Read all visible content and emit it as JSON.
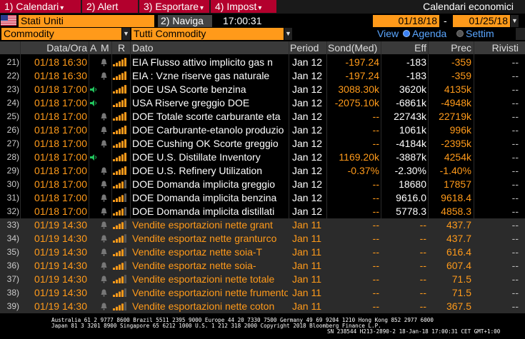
{
  "menu": {
    "items": [
      {
        "num": "1)",
        "label": "Calendari",
        "caret": true
      },
      {
        "num": "2)",
        "label": "Alert",
        "caret": false
      },
      {
        "num": "3)",
        "label": "Esportare",
        "caret": true
      },
      {
        "num": "4)",
        "label": "Impost",
        "caret": true
      }
    ],
    "screen_title": "Calendari economici"
  },
  "toolbar": {
    "country": "Stati Uniti",
    "navigate_num": "2)",
    "navigate_label": "Naviga",
    "clock": "17:00:31",
    "date_from": "01/18/18",
    "date_sep": "-",
    "date_to": "01/25/18"
  },
  "filters": {
    "category": "Commodity",
    "subcategory": "Tutti Commodity",
    "view_label": "View",
    "view_agenda": "Agenda",
    "view_week": "Settim",
    "view_selected": "Agenda"
  },
  "table": {
    "headers": {
      "dt": "Data/Ora",
      "a": "A",
      "m": "M",
      "r": "R",
      "dato": "Dato",
      "period": "Period",
      "sond": "Sond(Med)",
      "eff": "Eff",
      "prec": "Prec",
      "riv": "Rivisti"
    },
    "rows": [
      {
        "idx": "21)",
        "dt": "01/18 16:30",
        "alert": "bell",
        "bars": 5,
        "dato": "EIA Flusso attivo implicito gas n",
        "period": "Jan 12",
        "sond": "-197.24",
        "eff": "-183",
        "prec": "-359",
        "riv": "--",
        "future": false
      },
      {
        "idx": "22)",
        "dt": "01/18 16:30",
        "alert": "bell",
        "bars": 5,
        "dato": "EIA : Vzne riserve gas naturale",
        "period": "Jan 12",
        "sond": "-197.24",
        "eff": "-183",
        "prec": "-359",
        "riv": "--",
        "future": false
      },
      {
        "idx": "23)",
        "dt": "01/18 17:00",
        "alert": "speaker",
        "bars": 5,
        "dato": "DOE USA Scorte benzina",
        "period": "Jan 12",
        "sond": "3088.30k",
        "eff": "3620k",
        "prec": "4135k",
        "riv": "--",
        "future": false
      },
      {
        "idx": "24)",
        "dt": "01/18 17:00",
        "alert": "speaker",
        "bars": 5,
        "dato": "USA Riserve greggio DOE",
        "period": "Jan 12",
        "sond": "-2075.10k",
        "eff": "-6861k",
        "prec": "-4948k",
        "riv": "--",
        "future": false
      },
      {
        "idx": "25)",
        "dt": "01/18 17:00",
        "alert": "bell",
        "bars": 5,
        "dato": "DOE Totale scorte carburante eta",
        "period": "Jan 12",
        "sond": "--",
        "eff": "22743k",
        "prec": "22719k",
        "riv": "--",
        "future": false
      },
      {
        "idx": "26)",
        "dt": "01/18 17:00",
        "alert": "bell",
        "bars": 5,
        "dato": "DOE Carburante-etanolo produzio",
        "period": "Jan 12",
        "sond": "--",
        "eff": "1061k",
        "prec": "996k",
        "riv": "--",
        "future": false
      },
      {
        "idx": "27)",
        "dt": "01/18 17:00",
        "alert": "bell",
        "bars": 5,
        "dato": "DOE Cushing OK Scorte greggio",
        "period": "Jan 12",
        "sond": "--",
        "eff": "-4184k",
        "prec": "-2395k",
        "riv": "--",
        "future": false
      },
      {
        "idx": "28)",
        "dt": "01/18 17:00",
        "alert": "speaker",
        "bars": 5,
        "dato": "DOE U.S. Distillate Inventory",
        "period": "Jan 12",
        "sond": "1169.20k",
        "eff": "-3887k",
        "prec": "4254k",
        "riv": "--",
        "future": false
      },
      {
        "idx": "29)",
        "dt": "01/18 17:00",
        "alert": "bell",
        "bars": 5,
        "dato": "DOE U.S. Refinery Utilization",
        "period": "Jan 12",
        "sond": "-0.37%",
        "eff": "-2.30%",
        "prec": "-1.40%",
        "riv": "--",
        "future": false
      },
      {
        "idx": "30)",
        "dt": "01/18 17:00",
        "alert": "bell",
        "bars": 4,
        "dato": "DOE Domanda implicita greggio",
        "period": "Jan 12",
        "sond": "--",
        "eff": "18680",
        "prec": "17857",
        "riv": "--",
        "future": false
      },
      {
        "idx": "31)",
        "dt": "01/18 17:00",
        "alert": "bell",
        "bars": 4,
        "dato": "DOE Domanda implicita benzina",
        "period": "Jan 12",
        "sond": "--",
        "eff": "9616.0",
        "prec": "9618.4",
        "riv": "--",
        "future": false
      },
      {
        "idx": "32)",
        "dt": "01/18 17:00",
        "alert": "bell",
        "bars": 4,
        "dato": "DOE Domanda implicita distillati",
        "period": "Jan 12",
        "sond": "--",
        "eff": "5778.3",
        "prec": "4858.3",
        "riv": "--",
        "future": false
      },
      {
        "idx": "33)",
        "dt": "01/19 14:30",
        "alert": "bell",
        "bars": 4,
        "dato": "Vendite esportazioni nette grant",
        "period": "Jan 11",
        "sond": "--",
        "eff": "--",
        "prec": "437.7",
        "riv": "--",
        "future": true
      },
      {
        "idx": "34)",
        "dt": "01/19 14:30",
        "alert": "bell",
        "bars": 4,
        "dato": "Vendite esportaz nette granturco",
        "period": "Jan 11",
        "sond": "--",
        "eff": "--",
        "prec": "437.7",
        "riv": "--",
        "future": true
      },
      {
        "idx": "35)",
        "dt": "01/19 14:30",
        "alert": "bell",
        "bars": 4,
        "dato": "Vendite esportaz nette soia-T",
        "period": "Jan 11",
        "sond": "--",
        "eff": "--",
        "prec": "616.4",
        "riv": "--",
        "future": true
      },
      {
        "idx": "36)",
        "dt": "01/19 14:30",
        "alert": "bell",
        "bars": 4,
        "dato": "Vendite esportaz nette soia-",
        "period": "Jan 11",
        "sond": "--",
        "eff": "--",
        "prec": "607.4",
        "riv": "--",
        "future": true
      },
      {
        "idx": "37)",
        "dt": "01/19 14:30",
        "alert": "bell",
        "bars": 4,
        "dato": "Vendite esportazioni nette totale",
        "period": "Jan 11",
        "sond": "--",
        "eff": "--",
        "prec": "71.5",
        "riv": "--",
        "future": true
      },
      {
        "idx": "38)",
        "dt": "01/19 14:30",
        "alert": "bell",
        "bars": 4,
        "dato": "Vendite esportazioni nette frumento",
        "period": "Jan 11",
        "sond": "--",
        "eff": "--",
        "prec": "71.5",
        "riv": "--",
        "future": true
      },
      {
        "idx": "39)",
        "dt": "01/19 14:30",
        "alert": "bell",
        "bars": 4,
        "dato": "Vendite esportazioni nette coton",
        "period": "Jan 11",
        "sond": "--",
        "eff": "--",
        "prec": "367.5",
        "riv": "--",
        "future": true
      }
    ]
  },
  "footer": {
    "line1": "Australia 61 2 9777 8600 Brazil 5511 2395 9000 Europe 44 20 7330 7500 Germany 49 69 9204 1210 Hong Kong 852 2977 6000",
    "line2": "Japan 81 3 3201 8900        Singapore 65 6212 1000       U.S. 1 212 318 2000          Copyright 2018 Bloomberg Finance L.P.",
    "line3": "SN 238544 H213-2890-2 18-Jan-18 17:00:31 CET  GMT+1:00"
  },
  "colors": {
    "menu_red": "#b3002d",
    "orange": "#ff9a1a",
    "header_gray": "#3a3a3a",
    "future_row_bg": "#2b2b2b",
    "bar_active": "#ff9a1a",
    "bar_inactive": "#5a5a5a",
    "speaker_green": "#22c55e",
    "radio_selected": "#3b82f6"
  }
}
